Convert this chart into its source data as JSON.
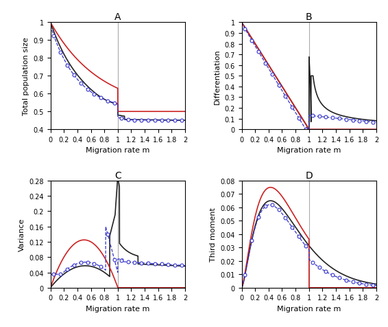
{
  "title_A": "A",
  "title_B": "B",
  "title_C": "C",
  "title_D": "D",
  "xlabel": "Migration rate m",
  "ylabel_A": "Total population size",
  "ylabel_B": "Differentiation",
  "ylabel_C": "Variance",
  "ylabel_D": "Third moment",
  "vline_x": 1.0,
  "vline_color": "#aaaaaa",
  "ylim_A": [
    0.4,
    1.0
  ],
  "ylim_B": [
    0.0,
    1.0
  ],
  "ylim_C": [
    0.0,
    0.28
  ],
  "ylim_D": [
    0.0,
    0.08
  ],
  "yticks_A": [
    0.4,
    0.5,
    0.6,
    0.7,
    0.8,
    0.9,
    1.0
  ],
  "yticks_B": [
    0.0,
    0.1,
    0.2,
    0.3,
    0.4,
    0.5,
    0.6,
    0.7,
    0.8,
    0.9,
    1.0
  ],
  "yticks_C": [
    0.0,
    0.04,
    0.08,
    0.12,
    0.16,
    0.2,
    0.24,
    0.28
  ],
  "yticks_D": [
    0.0,
    0.01,
    0.02,
    0.03,
    0.04,
    0.05,
    0.06,
    0.07,
    0.08
  ],
  "xticks": [
    0,
    0.2,
    0.4,
    0.6,
    0.8,
    1.0,
    1.2,
    1.4,
    1.6,
    1.8,
    2.0
  ],
  "color_black": "#222222",
  "color_red": "#cc2222",
  "color_blue": "#3333cc",
  "figsize": [
    5.66,
    4.77
  ],
  "dpi": 100
}
